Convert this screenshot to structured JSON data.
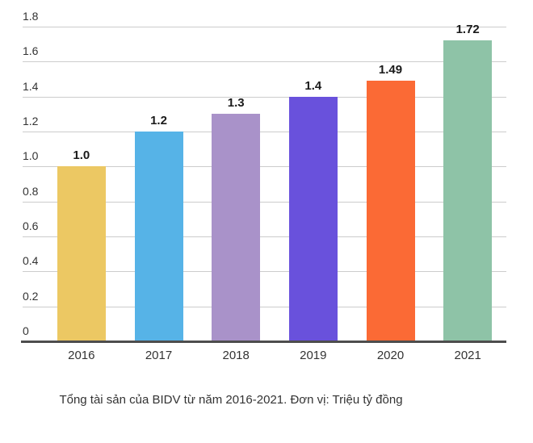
{
  "chart_data": {
    "type": "bar",
    "title": "",
    "caption": "Tổng tài sản của BIDV từ năm 2016-2021. Đơn vị: Triệu tỷ đồng",
    "categories": [
      "2016",
      "2017",
      "2018",
      "2019",
      "2020",
      "2021"
    ],
    "values": [
      1.0,
      1.2,
      1.3,
      1.4,
      1.49,
      1.72
    ],
    "value_labels": [
      "1.0",
      "1.2",
      "1.3",
      "1.4",
      "1.49",
      "1.72"
    ],
    "bar_colors": [
      "#ecc863",
      "#56b3e7",
      "#a992c9",
      "#6951dc",
      "#fb6a35",
      "#8ec3a7"
    ],
    "xlabel": "",
    "ylabel": "",
    "ylim": [
      0,
      1.8
    ],
    "ytick_labels": [
      "1.8",
      "1.6",
      "1.4",
      "1.2",
      "1.0",
      "0.8",
      "0.6",
      "0.4",
      "0.2",
      "0"
    ],
    "ytick_values": [
      1.8,
      1.6,
      1.4,
      1.2,
      1.0,
      0.8,
      0.6,
      0.4,
      0.2,
      0
    ],
    "grid": true,
    "legend": "none",
    "colors": {
      "grid": "#cccccc",
      "axis_line": "#4d4d4d",
      "tick_label": "#333333",
      "value_label": "#1a1a1a",
      "caption": "#333333",
      "background": "#ffffff"
    }
  }
}
